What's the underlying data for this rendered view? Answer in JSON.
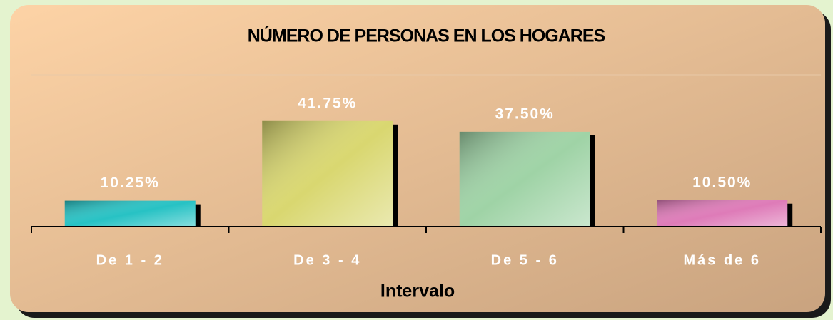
{
  "chart_data": {
    "type": "bar",
    "title": "NÚMERO DE PERSONAS EN LOS HOGARES",
    "x_label": "Intervalo",
    "categories": [
      "De 1 - 2",
      "De 3 - 4",
      "De 5 - 6",
      "Más de 6"
    ],
    "values": [
      10.25,
      41.75,
      37.5,
      10.5
    ],
    "value_labels": [
      "10.25%",
      "41.75%",
      "37.50%",
      "10.50%"
    ],
    "colors": [
      "#27c2c4",
      "#d9d770",
      "#9fd3a6",
      "#de7bb8"
    ],
    "ylim": [
      0,
      60
    ]
  }
}
